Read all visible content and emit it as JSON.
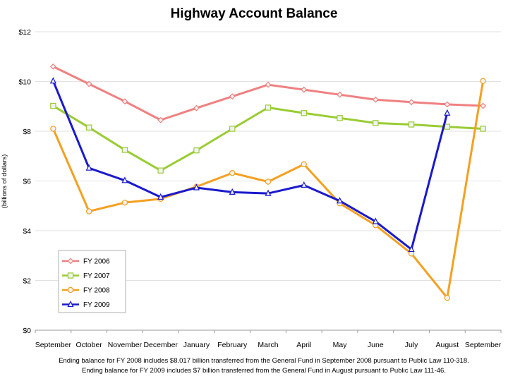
{
  "chart_data": {
    "type": "line",
    "title": "Highway Account Balance",
    "xlabel": "",
    "ylabel": "(billions of dollars)",
    "ylim": [
      0,
      12
    ],
    "yticks": [
      0,
      2,
      4,
      6,
      8,
      10,
      12
    ],
    "ytick_labels": [
      "$0",
      "$2",
      "$4",
      "$6",
      "$8",
      "$10",
      "$12"
    ],
    "grid": true,
    "legend_position": "bottom-left",
    "categories": [
      "September",
      "October",
      "November",
      "December",
      "January",
      "February",
      "March",
      "April",
      "May",
      "June",
      "July",
      "August",
      "September"
    ],
    "series": [
      {
        "name": "FY 2006",
        "color": "#f08080",
        "marker": "diamond",
        "values": [
          10.6,
          9.9,
          9.2,
          8.45,
          8.93,
          9.4,
          9.87,
          9.67,
          9.47,
          9.27,
          9.17,
          9.08,
          9.02
        ]
      },
      {
        "name": "FY 2007",
        "color": "#99cc33",
        "marker": "square",
        "values": [
          9.02,
          8.15,
          7.25,
          6.42,
          7.23,
          8.1,
          8.95,
          8.73,
          8.53,
          8.33,
          8.27,
          8.18,
          8.1
        ]
      },
      {
        "name": "FY 2008",
        "color": "#f5a020",
        "marker": "circle",
        "values": [
          8.1,
          4.78,
          5.13,
          5.28,
          5.77,
          6.32,
          5.97,
          6.67,
          5.1,
          4.22,
          3.08,
          1.3,
          10.02
        ]
      },
      {
        "name": "FY 2009",
        "color": "#1a1acc",
        "marker": "triangle",
        "values": [
          10.02,
          6.52,
          6.02,
          5.35,
          5.73,
          5.55,
          5.5,
          5.83,
          5.2,
          4.37,
          3.25,
          8.73,
          null
        ]
      }
    ],
    "footnotes": [
      "Ending balance for FY 2008 includes $8.017 billion transferred from the General Fund in September 2008 pursuant to Public Law 110-318.",
      "Ending balance for FY 2009 includes $7 billion transferred from the General Fund in August pursuant to Public Law 111-46."
    ]
  }
}
